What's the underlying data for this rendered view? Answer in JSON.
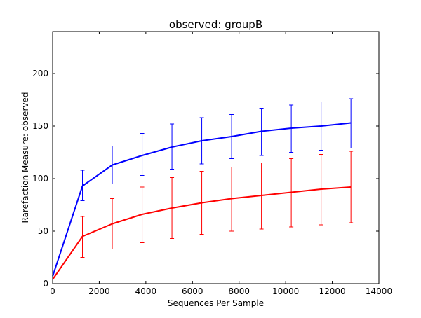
{
  "chart_data": {
    "type": "line",
    "title": "observed: groupB",
    "xlabel": "Sequences Per Sample",
    "ylabel": "Rarefaction Measure: observed",
    "xlim": [
      0,
      14000
    ],
    "ylim": [
      0,
      240
    ],
    "xticks": [
      0,
      2000,
      4000,
      6000,
      8000,
      10000,
      12000,
      14000
    ],
    "yticks": [
      0,
      50,
      100,
      150,
      200
    ],
    "grid": false,
    "series": [
      {
        "color": "#0000ff",
        "x": [
          0,
          1280,
          2560,
          3840,
          5120,
          6400,
          7680,
          8960,
          10240,
          11520,
          12800
        ],
        "y": [
          7,
          93,
          113,
          122,
          130,
          136,
          140,
          145,
          148,
          150,
          153
        ],
        "err_low": [
          7,
          79,
          95,
          103,
          109,
          114,
          119,
          122,
          125,
          127,
          129
        ],
        "err_high": [
          7,
          108,
          131,
          143,
          152,
          158,
          161,
          167,
          170,
          173,
          176
        ]
      },
      {
        "color": "#ff0000",
        "x": [
          0,
          1280,
          2560,
          3840,
          5120,
          6400,
          7680,
          8960,
          10240,
          11520,
          12800
        ],
        "y": [
          4,
          45,
          57,
          66,
          72,
          77,
          81,
          84,
          87,
          90,
          92
        ],
        "err_low": [
          4,
          25,
          33,
          39,
          43,
          47,
          50,
          52,
          54,
          56,
          58
        ],
        "err_high": [
          4,
          64,
          81,
          92,
          101,
          107,
          111,
          115,
          119,
          123,
          126
        ]
      }
    ]
  }
}
